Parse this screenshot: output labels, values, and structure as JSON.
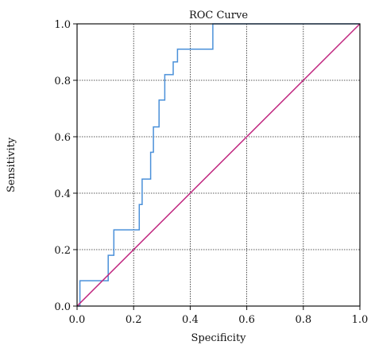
{
  "chart_data": {
    "type": "line",
    "title": "ROC Curve",
    "xlabel": "Specificity",
    "ylabel": "Sensitivity",
    "xlim": [
      0.0,
      1.0
    ],
    "ylim": [
      0.0,
      1.0
    ],
    "x_ticks": [
      "0.0",
      "0.2",
      "0.4",
      "0.6",
      "0.8",
      "1.0"
    ],
    "y_ticks": [
      "0.0",
      "0.2",
      "0.4",
      "0.6",
      "0.8",
      "1.0"
    ],
    "grid": true,
    "legend": "none",
    "series": [
      {
        "color": "#4a90d9",
        "points": [
          [
            0.0,
            0.0
          ],
          [
            0.01,
            0.0
          ],
          [
            0.01,
            0.09
          ],
          [
            0.11,
            0.09
          ],
          [
            0.11,
            0.18
          ],
          [
            0.13,
            0.18
          ],
          [
            0.13,
            0.27
          ],
          [
            0.22,
            0.27
          ],
          [
            0.22,
            0.36
          ],
          [
            0.23,
            0.36
          ],
          [
            0.23,
            0.45
          ],
          [
            0.26,
            0.45
          ],
          [
            0.26,
            0.545
          ],
          [
            0.27,
            0.545
          ],
          [
            0.27,
            0.635
          ],
          [
            0.29,
            0.635
          ],
          [
            0.29,
            0.73
          ],
          [
            0.31,
            0.73
          ],
          [
            0.31,
            0.82
          ],
          [
            0.34,
            0.82
          ],
          [
            0.34,
            0.865
          ],
          [
            0.355,
            0.865
          ],
          [
            0.355,
            0.91
          ],
          [
            0.48,
            0.91
          ],
          [
            0.48,
            1.0
          ],
          [
            1.0,
            1.0
          ]
        ]
      },
      {
        "color": "#c0267f",
        "points": [
          [
            0.0,
            0.0
          ],
          [
            1.0,
            1.0
          ]
        ]
      }
    ]
  }
}
